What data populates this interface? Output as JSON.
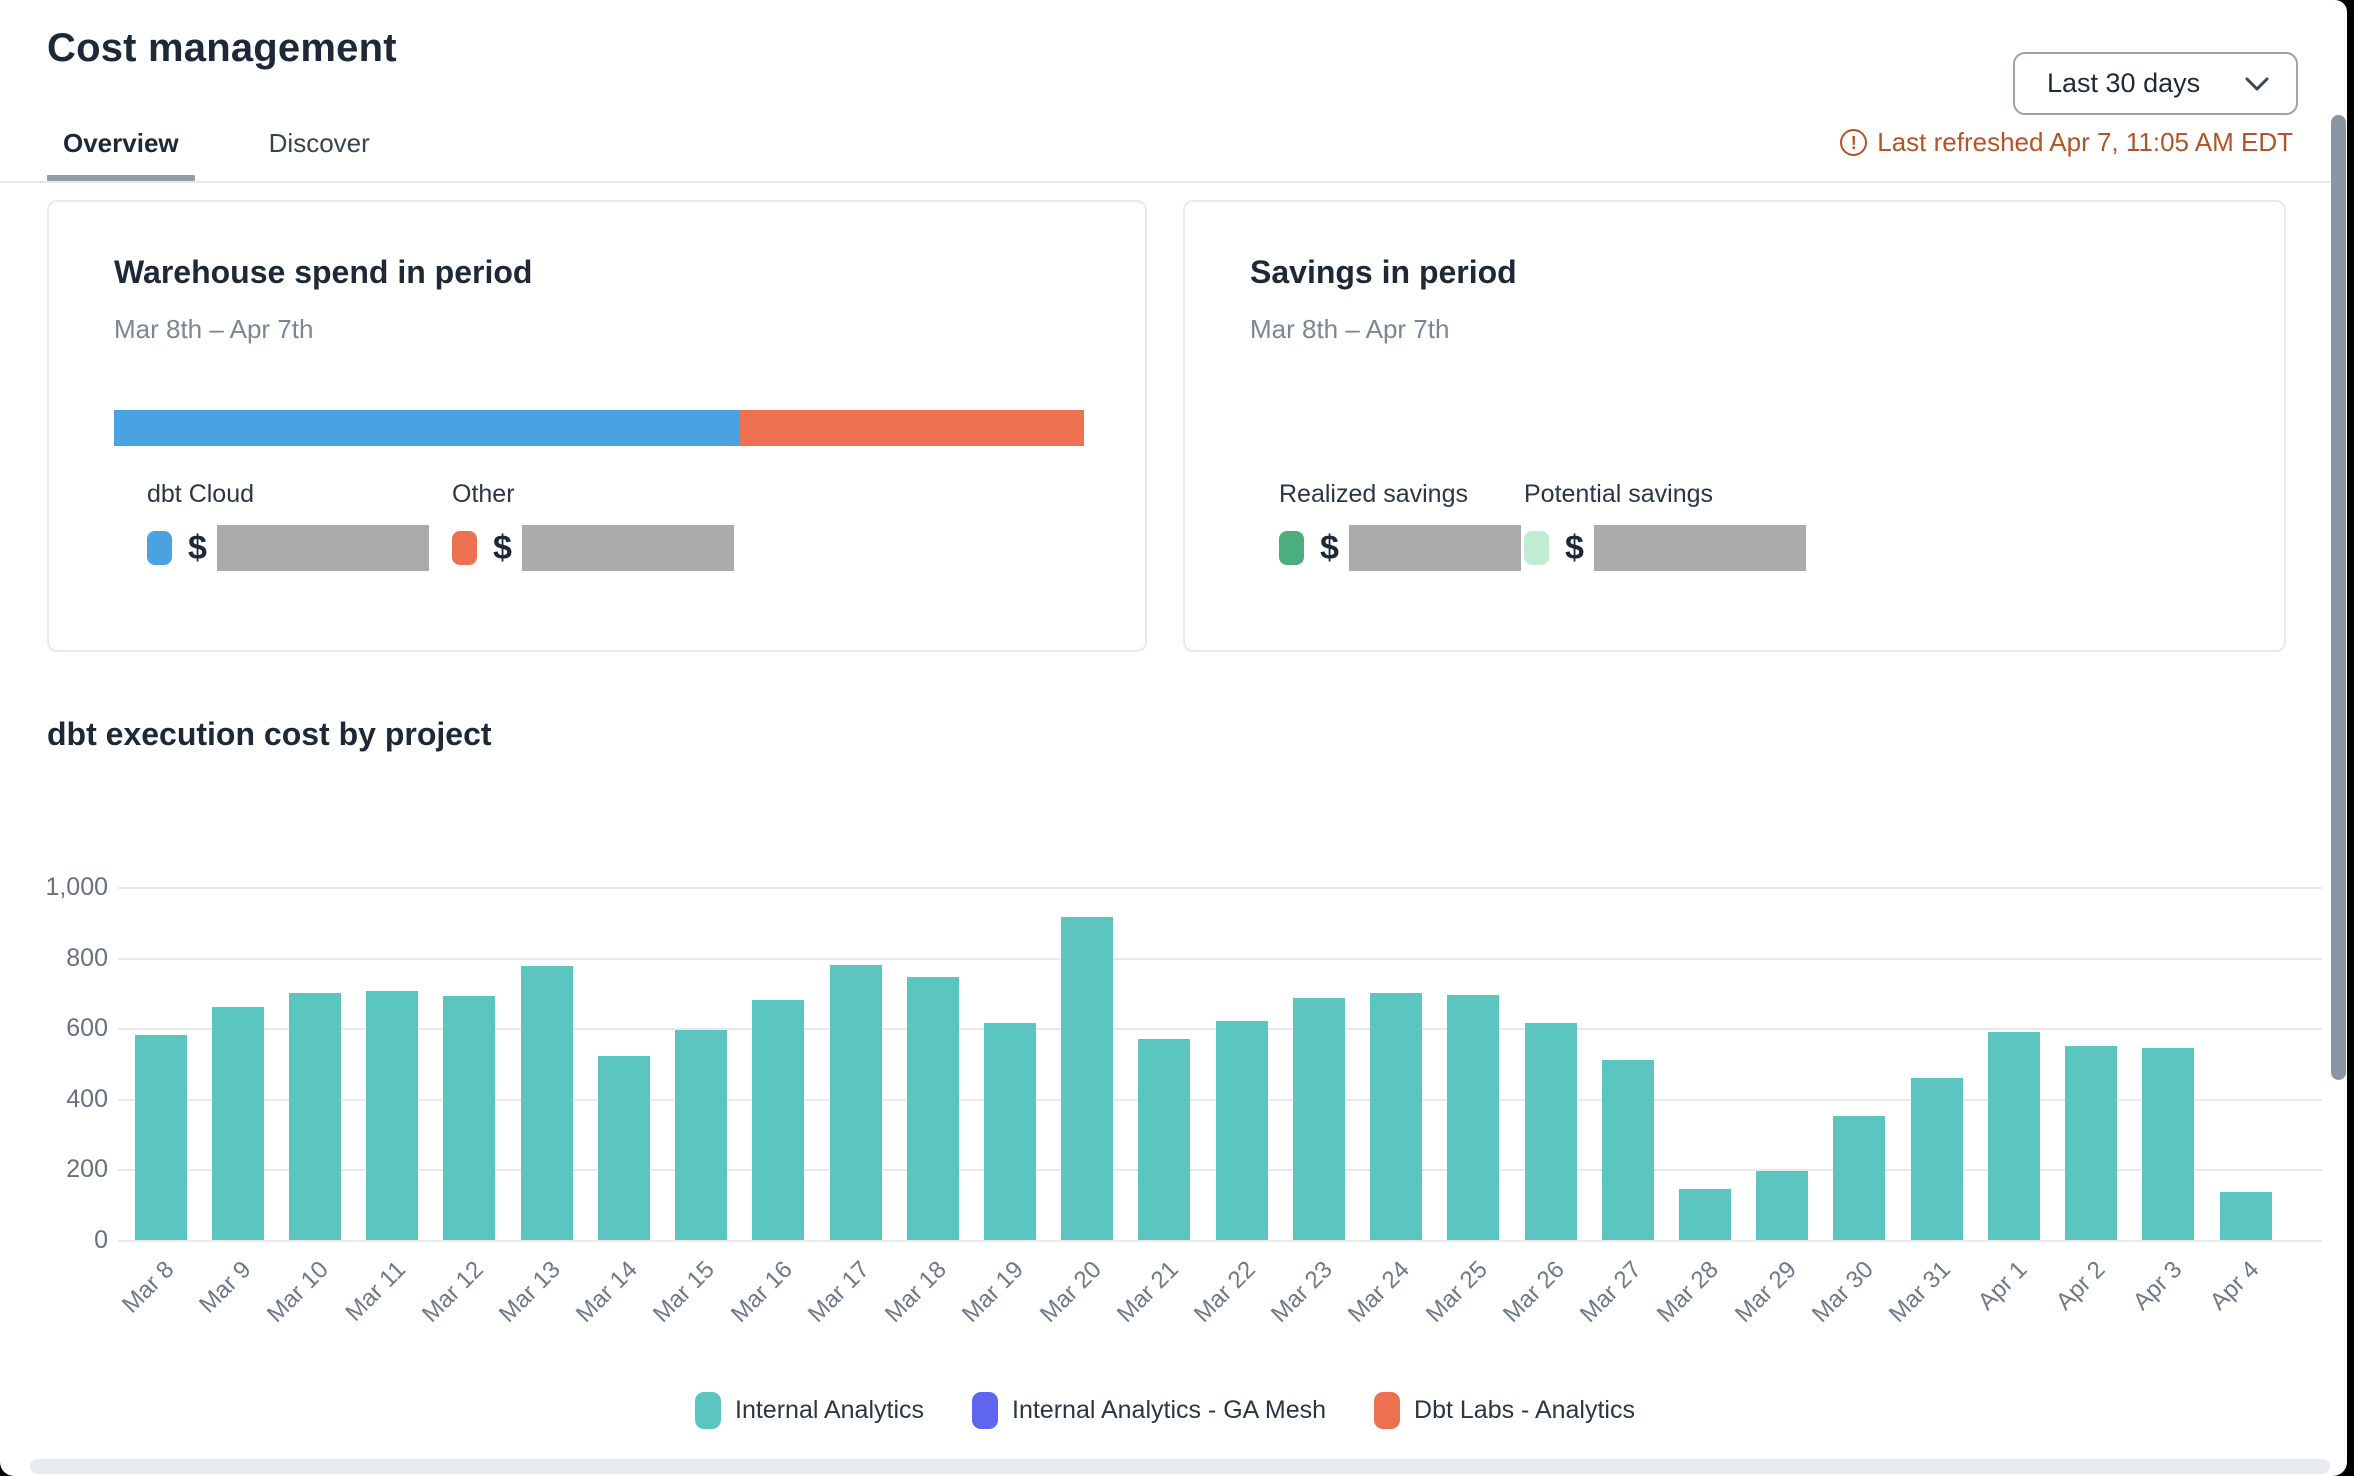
{
  "header": {
    "title": "Cost management",
    "tabs": [
      {
        "label": "Overview",
        "active": true
      },
      {
        "label": "Discover",
        "active": false
      }
    ],
    "range_selector": {
      "value": "Last 30 days"
    },
    "last_refreshed": "Last refreshed Apr 7, 11:05 AM EDT",
    "refresh_color": "#b25425"
  },
  "cards": {
    "warehouse": {
      "title": "Warehouse spend in period",
      "subtitle": "Mar 8th – Apr 7th",
      "segments": [
        {
          "label": "dbt Cloud",
          "color": "#4aa2e1",
          "percent": 64.5,
          "value_prefix": "$",
          "value_redacted": true
        },
        {
          "label": "Other",
          "color": "#ed7150",
          "percent": 35.5,
          "value_prefix": "$",
          "value_redacted": true
        }
      ]
    },
    "savings": {
      "title": "Savings in period",
      "subtitle": "Mar 8th – Apr 7th",
      "items": [
        {
          "label": "Realized savings",
          "color": "#4cae7d",
          "value_prefix": "$",
          "value_redacted": true
        },
        {
          "label": "Potential savings",
          "color": "#c0ecd4",
          "value_prefix": "$",
          "value_redacted": true
        }
      ]
    }
  },
  "chart_section": {
    "title": "dbt execution cost by project"
  },
  "chart_data": {
    "type": "bar",
    "title": "dbt execution cost by project",
    "categories": [
      "Mar 8",
      "Mar 9",
      "Mar 10",
      "Mar 11",
      "Mar 12",
      "Mar 13",
      "Mar 14",
      "Mar 15",
      "Mar 16",
      "Mar 17",
      "Mar 18",
      "Mar 19",
      "Mar 20",
      "Mar 21",
      "Mar 22",
      "Mar 23",
      "Mar 24",
      "Mar 25",
      "Mar 26",
      "Mar 27",
      "Mar 28",
      "Mar 29",
      "Mar 30",
      "Mar 31",
      "Apr 1",
      "Apr 2",
      "Apr 3",
      "Apr 4"
    ],
    "series": [
      {
        "name": "Internal Analytics",
        "color": "#5bc5bf",
        "values": [
          580,
          660,
          700,
          705,
          690,
          775,
          520,
          595,
          680,
          780,
          745,
          615,
          915,
          570,
          620,
          685,
          700,
          695,
          615,
          510,
          145,
          195,
          350,
          460,
          590,
          550,
          545,
          135
        ]
      }
    ],
    "legend": [
      {
        "label": "Internal Analytics",
        "color": "#5bc5bf"
      },
      {
        "label": "Internal Analytics - GA Mesh",
        "color": "#6065ef"
      },
      {
        "label": "Dbt Labs - Analytics",
        "color": "#ed7150"
      }
    ],
    "xlabel": "",
    "ylabel": "",
    "ylim": [
      0,
      1000
    ],
    "yticks": [
      0,
      200,
      400,
      600,
      800,
      1000
    ],
    "ytick_labels": [
      "0",
      "200",
      "400",
      "600",
      "800",
      "1,000"
    ],
    "grid": true,
    "legend_position": "bottom"
  }
}
